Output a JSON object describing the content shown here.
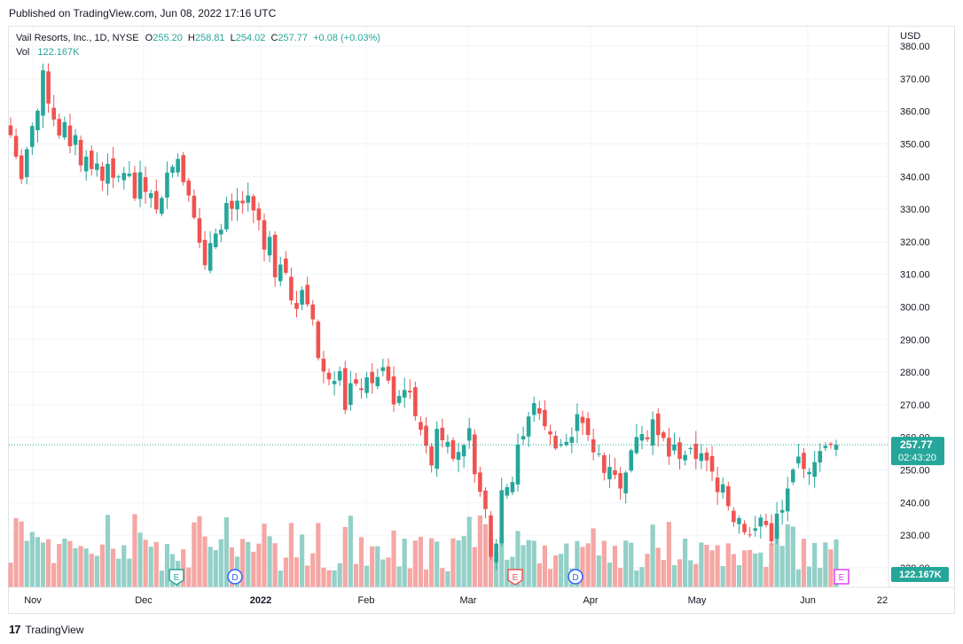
{
  "header": {
    "published": "Published on TradingView.com, Jun 08, 2022 17:16 UTC"
  },
  "legend": {
    "symbol": "Vail Resorts, Inc., 1D, NYSE",
    "o_label": "O",
    "o": "255.20",
    "h_label": "H",
    "h": "258.81",
    "l_label": "L",
    "l": "254.02",
    "c_label": "C",
    "c": "257.77",
    "change": "+0.08 (+0.03%)",
    "vol_label": "Vol",
    "vol": "122.167K"
  },
  "axis": {
    "currency": "USD",
    "y_ticks": [
      "380.00",
      "370.00",
      "360.00",
      "350.00",
      "340.00",
      "330.00",
      "320.00",
      "310.00",
      "300.00",
      "290.00",
      "280.00",
      "270.00",
      "260.00",
      "250.00",
      "240.00",
      "230.00",
      "220.00"
    ],
    "x_ticks": [
      "Nov",
      "Dec",
      "2022",
      "Feb",
      "Mar",
      "Apr",
      "May",
      "Jun",
      "22"
    ]
  },
  "price_label": {
    "price": "257.77",
    "countdown": "02:43:20"
  },
  "volume_label": "122.167K",
  "events": [
    {
      "letter": "E",
      "type": "earnings"
    },
    {
      "letter": "D",
      "type": "dividend"
    },
    {
      "letter": "E",
      "type": "earnings"
    },
    {
      "letter": "D",
      "type": "dividend"
    },
    {
      "letter": "E",
      "type": "earnings-upcoming"
    }
  ],
  "footer": {
    "brand": "TradingView",
    "logo": "17"
  },
  "colors": {
    "up": "#26a69a",
    "down": "#ef5350",
    "up_vol": "#93d0c7",
    "down_vol": "#f4a7a4",
    "grid": "#f0f3fa"
  },
  "chart_data": {
    "type": "candlestick",
    "ylim": [
      214,
      386
    ],
    "closes": [
      352.7,
      346.1,
      339.2,
      348.4,
      355.5,
      360.2,
      372.6,
      362.4,
      357.5,
      352.6,
      356.7,
      349.3,
      352.7,
      343.4,
      346.1,
      342.3,
      344.0,
      338.7,
      343.9,
      339.6,
      340.0,
      341.1,
      340.9,
      333.3,
      341.3,
      335.3,
      334.9,
      329.9,
      333.4,
      341.2,
      343.0,
      345.4,
      338.3,
      334.2,
      327.4,
      319.7,
      312.8,
      319.6,
      322.5,
      323.7,
      331.9,
      330.1,
      332.6,
      331.8,
      334.2,
      329.6,
      326.6,
      317.6,
      321.5,
      309.1,
      313.0,
      310.5,
      302.0,
      299.4,
      305.2,
      300.8,
      296.2,
      284.3,
      280.2,
      277.8,
      277.3,
      280.3,
      268.4,
      276.6,
      276.5,
      274.5,
      278.4,
      276.6,
      278.5,
      281.5,
      277.4,
      270.1,
      272.7,
      274.5,
      273.8,
      266.5,
      262.3,
      257.4,
      251.4,
      262.6,
      259.1,
      258.6,
      253.4,
      255.5,
      257.6,
      262.8,
      248.7,
      243.3,
      238.0,
      223.4,
      227.4,
      243.8,
      244.7,
      246.3,
      257.8,
      260.4,
      266.4,
      270.5,
      267.3,
      263.4,
      260.9,
      256.6,
      257.9,
      258.6,
      260.1,
      267.1,
      264.4,
      260.7,
      255.4,
      255.0,
      249.1,
      250.9,
      248.5,
      244.3,
      249.2,
      256.0,
      260.1,
      261.0,
      259.4,
      265.5,
      260.7,
      259.8,
      254.1,
      257.8,
      253.4,
      254.6,
      256.7,
      253.4,
      255.1,
      252.9,
      249.5,
      243.2,
      245.6,
      238.9,
      234.0,
      235.2,
      230.9,
      230.0,
      232.1,
      235.4,
      233.1,
      228.1,
      236.6,
      237.7,
      244.3,
      250.1,
      254.1,
      250.3,
      249.4,
      252.4,
      255.8,
      257.4,
      257.7,
      257.7
    ]
  }
}
